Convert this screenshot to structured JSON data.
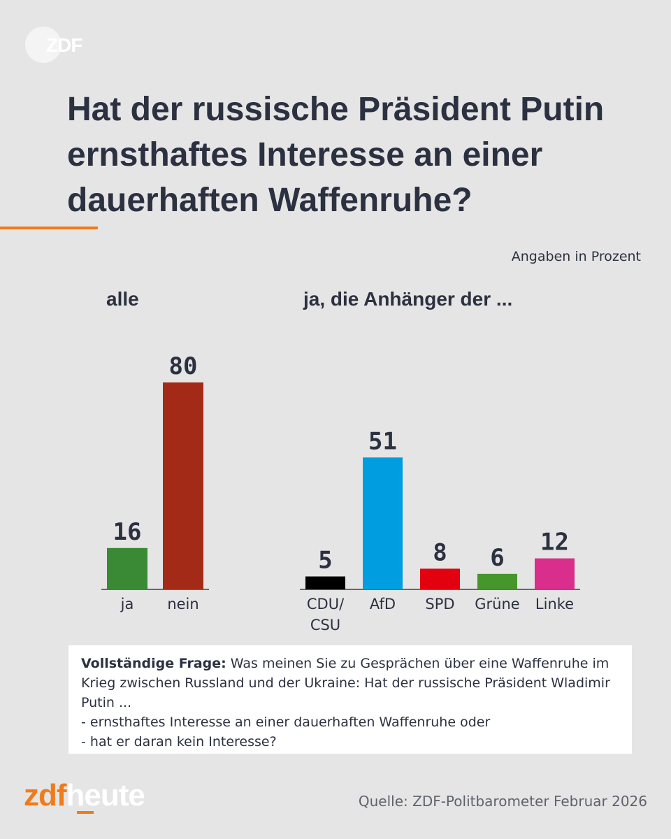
{
  "brand": {
    "top_logo_text": "ZDF",
    "bottom_logo_zdf": "zdf",
    "bottom_logo_heute": "heute",
    "orange": "#f07b1a"
  },
  "headline": "Hat der russische Präsident Putin ernsthaftes Interesse an einer dauerhaften Waffenruhe?",
  "unit_note": "Angaben in Prozent",
  "question_box": {
    "label": "Vollständige Frage:",
    "text": "Was meinen Sie zu Gesprächen über eine Waffenruhe im Krieg zwischen Russland und der Ukraine: Hat der russische Präsident Wladimir Putin ...",
    "option_1": "- ernsthaftes Interesse an einer dauerhaften Waffenruhe oder",
    "option_2": "- hat er daran kein Interesse?"
  },
  "source": "Quelle: ZDF-Politbarometer Februar 2026",
  "chart_data": [
    {
      "type": "bar",
      "title": "alle",
      "categories": [
        "ja",
        "nein"
      ],
      "values": [
        16,
        80
      ],
      "colors": [
        "#3a8a35",
        "#a42a18"
      ],
      "ylim": [
        0,
        80
      ],
      "grid": false
    },
    {
      "type": "bar",
      "title": "ja, die Anhänger der ...",
      "categories": [
        "CDU/\nCSU",
        "AfD",
        "SPD",
        "Grüne",
        "Linke"
      ],
      "values": [
        5,
        51,
        8,
        6,
        12
      ],
      "colors": [
        "#000000",
        "#009ee0",
        "#e3000f",
        "#46962b",
        "#d92e8b"
      ],
      "ylim": [
        0,
        80
      ],
      "grid": false
    }
  ]
}
